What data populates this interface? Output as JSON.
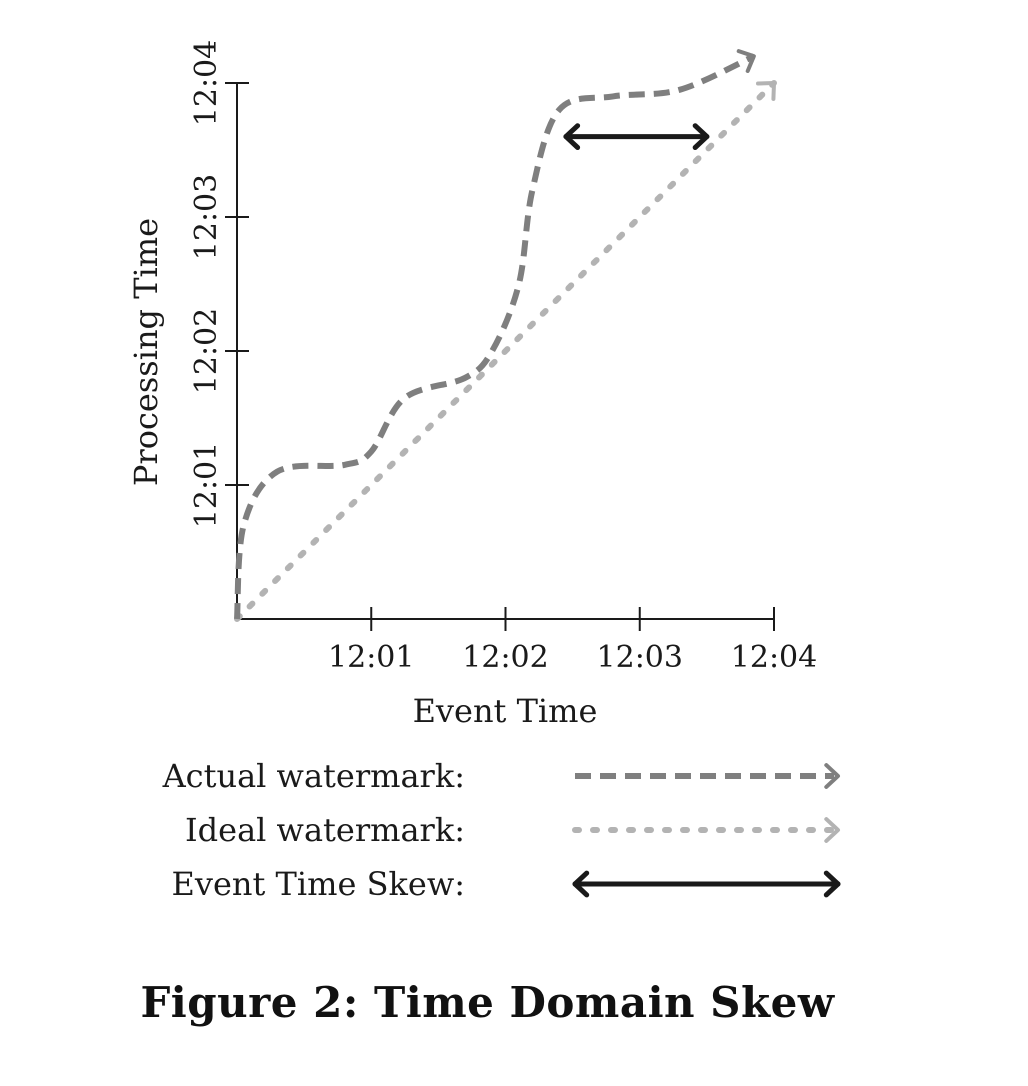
{
  "chart_data": {
    "type": "line",
    "xlabel": "Event Time",
    "ylabel": "Processing Time",
    "x_ticks": [
      "12:01",
      "12:02",
      "12:03",
      "12:04"
    ],
    "y_ticks": [
      "12:01",
      "12:02",
      "12:03",
      "12:04"
    ],
    "xlim": [
      0,
      4
    ],
    "ylim": [
      0,
      4
    ],
    "series": [
      {
        "name": "Actual watermark",
        "style": "dashed",
        "color": "#7f7f7f",
        "points": [
          [
            0,
            0
          ],
          [
            0.05,
            0.7
          ],
          [
            0.3,
            1.1
          ],
          [
            0.8,
            1.15
          ],
          [
            1.0,
            1.25
          ],
          [
            1.25,
            1.65
          ],
          [
            1.7,
            1.8
          ],
          [
            1.9,
            2.0
          ],
          [
            2.1,
            2.5
          ],
          [
            2.2,
            3.2
          ],
          [
            2.4,
            3.8
          ],
          [
            2.8,
            3.9
          ],
          [
            3.3,
            3.95
          ],
          [
            3.85,
            4.2
          ]
        ]
      },
      {
        "name": "Ideal watermark",
        "style": "dotted",
        "color": "#b3b3b3",
        "points": [
          [
            0,
            0
          ],
          [
            4,
            4
          ]
        ]
      }
    ],
    "annotations": [
      {
        "name": "Event Time Skew",
        "type": "double-arrow",
        "color": "#1a1a1a",
        "x_start": 2.45,
        "x_end": 3.5,
        "y": 3.6
      }
    ],
    "legend": {
      "placement": "below",
      "entries": [
        {
          "label": "Actual watermark:",
          "style": "dashed",
          "color": "#7f7f7f"
        },
        {
          "label": "Ideal watermark:",
          "style": "dotted",
          "color": "#b3b3b3"
        },
        {
          "label": "Event Time Skew:",
          "style": "double-arrow",
          "color": "#1a1a1a"
        }
      ]
    }
  },
  "caption": "Figure 2: Time Domain Skew"
}
